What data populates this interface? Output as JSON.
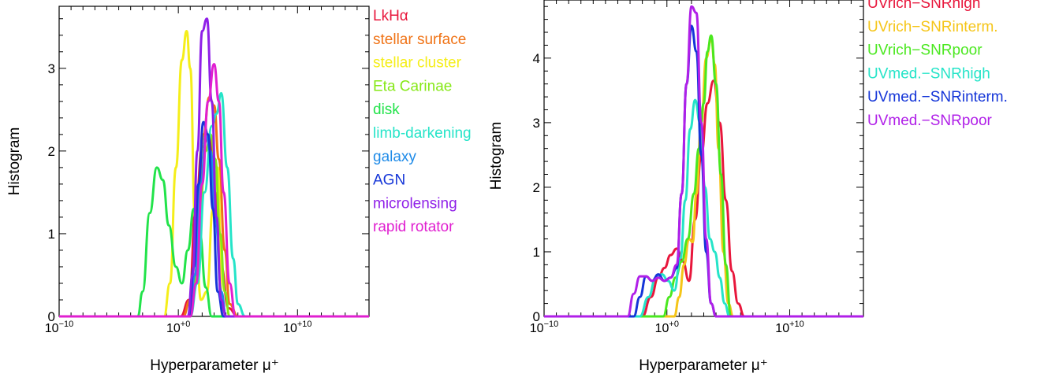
{
  "chart_data": [
    {
      "type": "line",
      "xlabel": "Hyperparameter μ⁺",
      "ylabel": "Histogram",
      "xscale": "log",
      "xlim_log10": [
        -10,
        16
      ],
      "ylim": [
        0,
        3.75
      ],
      "x_ticks": [
        {
          "log10": -10,
          "base": "10",
          "exp": "−10"
        },
        {
          "log10": 0,
          "base": "10",
          "exp": "+0"
        },
        {
          "log10": 10,
          "base": "10",
          "exp": "+10"
        }
      ],
      "y_ticks": [
        "0",
        "1",
        "2",
        "3"
      ],
      "y_tick_values": [
        0,
        1,
        2,
        3
      ],
      "grid": false,
      "legend_position": "outside-right",
      "series": [
        {
          "name": "LkHα",
          "color": "#e8173c",
          "x_log10": [
            -10,
            0.2,
            0.9,
            1.5,
            2.0,
            2.6,
            3.1,
            3.6,
            4.2,
            5.0,
            16
          ],
          "y": [
            0,
            0,
            0.2,
            1.4,
            2.05,
            2.2,
            1.5,
            0.6,
            0.1,
            0,
            0
          ]
        },
        {
          "name": "stellar surface",
          "color": "#f07316",
          "x_log10": [
            -10,
            0.4,
            1.0,
            1.6,
            2.1,
            2.6,
            3.0,
            3.4,
            3.9,
            4.3,
            5.0,
            16
          ],
          "y": [
            0,
            0,
            0.2,
            1.2,
            2.2,
            2.65,
            2.55,
            1.9,
            0.8,
            0.15,
            0,
            0
          ]
        },
        {
          "name": "stellar cluster",
          "color": "#f5ee1a",
          "x_log10": [
            -10,
            -1.2,
            -0.7,
            -0.2,
            0.3,
            0.7,
            1.0,
            1.4,
            1.9,
            2.4,
            2.9,
            3.3,
            3.7,
            16
          ],
          "y": [
            0,
            0,
            0.4,
            1.8,
            3.1,
            3.45,
            3.0,
            1.2,
            0.2,
            0.3,
            1.3,
            1.8,
            0,
            0
          ]
        },
        {
          "name": "Eta Carinae",
          "color": "#86e817",
          "x_log10": [
            -10,
            0.8,
            1.3,
            1.8,
            2.3,
            2.7,
            3.1,
            3.5,
            3.9,
            4.3,
            16
          ],
          "y": [
            0,
            0,
            0.3,
            1.3,
            2.0,
            2.2,
            1.9,
            1.0,
            0.3,
            0,
            0
          ]
        },
        {
          "name": "disk",
          "color": "#22e34a",
          "x_log10": [
            -10,
            -3.4,
            -3.0,
            -2.4,
            -1.8,
            -1.3,
            -0.8,
            -0.2,
            0.3,
            0.8,
            1.3,
            1.8,
            2.3,
            2.8,
            3.2,
            16
          ],
          "y": [
            0,
            0,
            0.3,
            1.25,
            1.8,
            1.65,
            1.1,
            0.6,
            0.4,
            0.8,
            1.3,
            1.0,
            0.35,
            0,
            0,
            0
          ]
        },
        {
          "name": "limb-darkening",
          "color": "#25e4c8",
          "x_log10": [
            -10,
            1.0,
            1.6,
            2.2,
            2.8,
            3.2,
            3.6,
            4.1,
            4.6,
            5.0,
            5.6,
            16
          ],
          "y": [
            0,
            0,
            0.4,
            1.5,
            2.3,
            2.45,
            2.7,
            1.8,
            0.7,
            0.15,
            0,
            0
          ]
        },
        {
          "name": "galaxy",
          "color": "#1f8be8",
          "x_log10": [
            -10,
            0.9,
            1.4,
            1.9,
            2.3,
            2.7,
            3.1,
            3.6,
            4.0,
            16
          ],
          "y": [
            0,
            0,
            0.5,
            1.6,
            2.2,
            2.0,
            1.2,
            0.3,
            0,
            0
          ]
        },
        {
          "name": "AGN",
          "color": "#1435d8",
          "x_log10": [
            -10,
            0.9,
            1.3,
            1.7,
            2.1,
            2.5,
            2.9,
            3.3,
            3.8,
            16
          ],
          "y": [
            0,
            0,
            0.6,
            1.6,
            2.35,
            2.2,
            1.3,
            0.3,
            0,
            0
          ]
        },
        {
          "name": "microlensing",
          "color": "#8f1fe8",
          "x_log10": [
            -10,
            0.8,
            1.2,
            1.6,
            2.0,
            2.4,
            2.8,
            3.2,
            3.6,
            4.0,
            16
          ],
          "y": [
            0,
            0,
            0.5,
            2.0,
            3.45,
            3.6,
            2.6,
            1.2,
            0.2,
            0,
            0
          ]
        },
        {
          "name": "rapid rotator",
          "color": "#e01fd0",
          "x_log10": [
            -10,
            1.0,
            1.5,
            2.0,
            2.5,
            3.0,
            3.4,
            3.8,
            4.3,
            4.8,
            16
          ],
          "y": [
            0,
            0,
            0.4,
            1.6,
            2.6,
            3.05,
            2.6,
            1.5,
            0.4,
            0,
            0
          ]
        }
      ]
    },
    {
      "type": "line",
      "xlabel": "Hyperparameter μ⁺",
      "ylabel": "Histogram",
      "xscale": "log",
      "xlim_log10": [
        -10,
        16
      ],
      "ylim": [
        0,
        4.9
      ],
      "x_ticks": [
        {
          "log10": -10,
          "base": "10",
          "exp": "−10"
        },
        {
          "log10": 0,
          "base": "10",
          "exp": "+0"
        },
        {
          "log10": 10,
          "base": "10",
          "exp": "+10"
        }
      ],
      "y_ticks": [
        "0",
        "1",
        "2",
        "3",
        "4"
      ],
      "y_tick_values": [
        0,
        1,
        2,
        3,
        4
      ],
      "grid": false,
      "legend_position": "outside-right",
      "series": [
        {
          "name": "UVrich−SNRhigh",
          "color": "#e8173c",
          "x_log10": [
            -10,
            -2.0,
            -1.3,
            -0.7,
            -0.2,
            0.3,
            0.8,
            1.3,
            1.8,
            2.3,
            2.8,
            3.3,
            3.8,
            4.3,
            4.8,
            5.3,
            5.8,
            6.3,
            16
          ],
          "y": [
            0,
            0,
            0.3,
            0.6,
            0.75,
            0.95,
            1.05,
            0.85,
            0.55,
            1.5,
            2.5,
            3.3,
            3.65,
            3.0,
            1.8,
            0.7,
            0.2,
            0,
            0
          ]
        },
        {
          "name": "UVrich−SNRinterm.",
          "color": "#f5c518",
          "x_log10": [
            -10,
            0.6,
            1.0,
            1.4,
            1.8,
            2.1,
            2.4,
            2.8,
            3.2,
            3.6,
            3.9,
            4.2,
            4.6,
            5.0,
            5.4,
            16
          ],
          "y": [
            0,
            0,
            0.3,
            0.8,
            1.2,
            1.15,
            1.9,
            3.0,
            4.0,
            4.3,
            3.9,
            2.6,
            1.0,
            0.2,
            0,
            0
          ]
        },
        {
          "name": "UVrich−SNRpoor",
          "color": "#4ae81f",
          "x_log10": [
            -10,
            -0.3,
            0.2,
            0.7,
            1.2,
            1.7,
            2.2,
            2.6,
            3.0,
            3.3,
            3.6,
            4.0,
            4.4,
            4.8,
            5.2,
            16
          ],
          "y": [
            0,
            0,
            0.3,
            0.6,
            0.85,
            1.2,
            1.9,
            2.6,
            3.3,
            4.1,
            4.35,
            3.6,
            2.2,
            0.8,
            0,
            0
          ]
        },
        {
          "name": "UVmed.−SNRhigh",
          "color": "#25e4c8",
          "x_log10": [
            -10,
            -2.2,
            -1.5,
            -0.9,
            -0.4,
            0.1,
            0.6,
            1.1,
            1.5,
            1.9,
            2.3,
            2.7,
            3.1,
            3.5,
            3.9,
            4.3,
            4.7,
            5.1,
            16
          ],
          "y": [
            0,
            0,
            0.3,
            0.6,
            0.65,
            0.55,
            0.4,
            0.9,
            1.8,
            2.9,
            3.35,
            3.0,
            2.0,
            1.2,
            1.0,
            0.6,
            0.2,
            0,
            0
          ]
        },
        {
          "name": "UVmed.−SNRinterm.",
          "color": "#1435d8",
          "x_log10": [
            -10,
            -2.7,
            -2.2,
            -1.7,
            -1.2,
            -0.7,
            -0.2,
            0.3,
            0.8,
            1.2,
            1.6,
            2.0,
            2.4,
            2.8,
            3.2,
            3.6,
            4.0,
            16
          ],
          "y": [
            0,
            0,
            0.3,
            0.62,
            0.55,
            0.65,
            0.55,
            0.6,
            0.75,
            1.9,
            3.6,
            4.5,
            4.1,
            2.5,
            1.0,
            0.2,
            0,
            0
          ]
        },
        {
          "name": "UVmed.−SNRpoor",
          "color": "#b01fe8",
          "x_log10": [
            -10,
            -3.2,
            -2.7,
            -2.2,
            -1.7,
            -1.2,
            -0.7,
            -0.2,
            0.3,
            0.8,
            1.2,
            1.6,
            2.0,
            2.4,
            2.8,
            3.2,
            3.6,
            4.0,
            16
          ],
          "y": [
            0,
            0,
            0.35,
            0.62,
            0.62,
            0.55,
            0.6,
            0.55,
            0.6,
            0.8,
            1.9,
            3.6,
            4.8,
            4.7,
            3.0,
            1.2,
            0.2,
            0,
            0
          ]
        }
      ]
    }
  ]
}
